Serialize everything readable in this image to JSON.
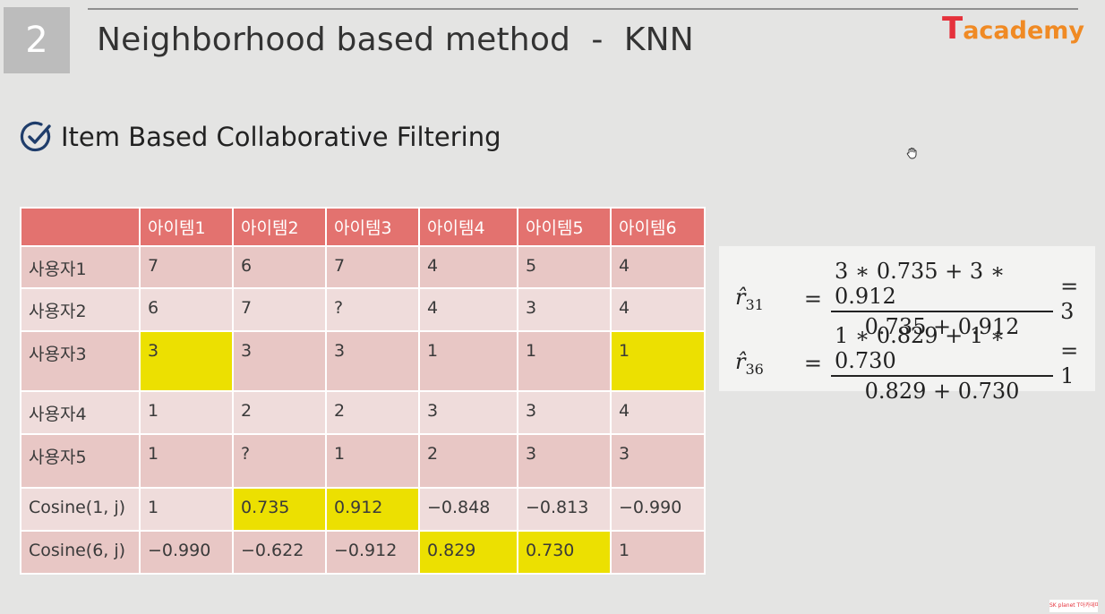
{
  "slide": {
    "number": "2",
    "title": "Neighborhood based method  -  KNN",
    "logo_t": "T",
    "logo_rest": "academy",
    "subtitle": "Item Based Collaborative Filtering",
    "footer_logo": "SK planet T아카데미"
  },
  "table": {
    "headers": [
      "",
      "아이템1",
      "아이템2",
      "아이템3",
      "아이템4",
      "아이템5",
      "아이템6"
    ],
    "rows": [
      {
        "label": "사용자1",
        "cells": [
          "7",
          "6",
          "7",
          "4",
          "5",
          "4"
        ]
      },
      {
        "label": "사용자2",
        "cells": [
          "6",
          "7",
          "?",
          "4",
          "3",
          "4"
        ]
      },
      {
        "label": "사용자3",
        "cells": [
          "3",
          "3",
          "3",
          "1",
          "1",
          "1"
        ]
      },
      {
        "label": "사용자4",
        "cells": [
          "1",
          "2",
          "2",
          "3",
          "3",
          "4"
        ]
      },
      {
        "label": "사용자5",
        "cells": [
          "1",
          "?",
          "1",
          "2",
          "3",
          "3"
        ]
      },
      {
        "label": "Cosine(1, j)",
        "cells": [
          "1",
          "0.735",
          "0.912",
          "−0.848",
          "−0.813",
          "−0.990"
        ]
      },
      {
        "label": "Cosine(6, j)",
        "cells": [
          "−0.990",
          "−0.622",
          "−0.912",
          "0.829",
          "0.730",
          "1"
        ]
      }
    ]
  },
  "formulas": [
    {
      "lhs": "r̂",
      "sub": "31",
      "num": "3 ∗ 0.735 + 3 ∗ 0.912",
      "den": "0.735 + 0.912",
      "result": "= 3"
    },
    {
      "lhs": "r̂",
      "sub": "36",
      "num": "1 ∗ 0.829 + 1 ∗ 0.730",
      "den": "0.829 + 0.730",
      "result": "= 1"
    }
  ],
  "colors": {
    "header": "#e3726f",
    "highlight": "#ece001"
  }
}
